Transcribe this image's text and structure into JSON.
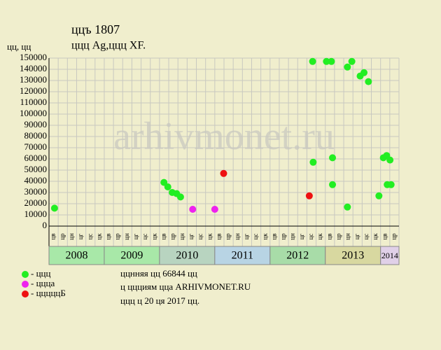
{
  "chart_data": {
    "type": "scatter",
    "title": "ццъ 1807",
    "subtitle": "ццц Ag,ццц XF.",
    "y_label": "цц, цц",
    "watermark": "arhivmonet.ru",
    "notes": [
      "ццнняя цц 66844 цц",
      "ц ццциям цца ARHIVMONET.RU",
      "ццц ц 20 ця 2017 цц."
    ],
    "ylim": [
      0,
      150000
    ],
    "yticks": [
      0,
      10000,
      20000,
      30000,
      40000,
      50000,
      60000,
      70000,
      80000,
      90000,
      100000,
      110000,
      120000,
      130000,
      140000,
      150000
    ],
    "xlim": [
      2008,
      2014.333
    ],
    "xticks": [
      2008,
      2009,
      2010,
      2011,
      2012,
      2013,
      2014
    ],
    "year_colors": [
      "#a8e8a8",
      "#a8e8a8",
      "#b8d4c0",
      "#b8d4e4",
      "#a8dca8",
      "#d8d8a0",
      "#e0d0e8"
    ],
    "month_labels": [
      "цв",
      "цр",
      "цн",
      "цг",
      "цс",
      "цк",
      "цв",
      "цр",
      "цн",
      "цг",
      "цс",
      "цк",
      "цв",
      "цр",
      "цн",
      "цг",
      "цс",
      "цк",
      "цв",
      "цр",
      "цн",
      "цг",
      "цс",
      "цк",
      "цв",
      "цр",
      "цн",
      "цг",
      "цс",
      "цк",
      "цв",
      "цр",
      "цн",
      "цг",
      "цс",
      "цк",
      "цв",
      "цр"
    ],
    "grid": true,
    "series": [
      {
        "name": "- ццц",
        "color": "#22ee22",
        "x": [
          2008.1,
          2010.08,
          2010.15,
          2010.23,
          2010.31,
          2010.38,
          2012.77,
          2012.78,
          2013.02,
          2013.11,
          2013.13,
          2013.13,
          2013.4,
          2013.4,
          2013.48,
          2013.63,
          2013.7,
          2013.78,
          2013.97,
          2014.05,
          2014.11,
          2014.12,
          2014.17,
          2014.19
        ],
        "values": [
          16000,
          39000,
          35000,
          30000,
          29000,
          26000,
          147000,
          57000,
          147000,
          147000,
          61000,
          37000,
          17000,
          142000,
          147000,
          134000,
          137000,
          129000,
          27000,
          61000,
          63000,
          37000,
          59000,
          37000
        ]
      },
      {
        "name": "- ццца",
        "color": "#ee22ee",
        "x": [
          2010.6,
          2011.0
        ],
        "values": [
          15000,
          15000
        ]
      },
      {
        "name": "- цццццБ",
        "color": "#ee1111",
        "x": [
          2011.16,
          2012.71
        ],
        "values": [
          47000,
          27000
        ]
      }
    ]
  }
}
